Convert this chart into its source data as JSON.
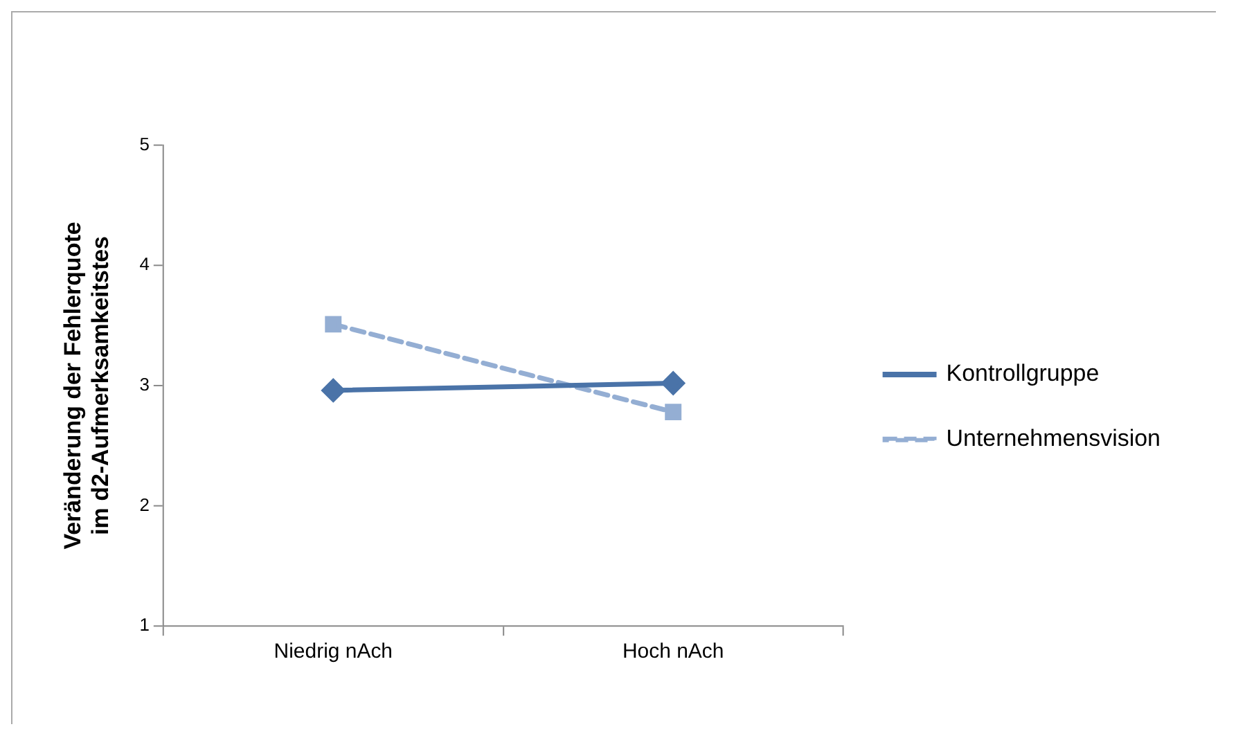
{
  "chart_data": {
    "type": "line",
    "ylabel": "Veränderung der Fehlerquote\nim d2-Aufmerksamkeitstes",
    "categories": [
      "Niedrig nAch",
      "Hoch nAch"
    ],
    "series": [
      {
        "name": "Kontrollgruppe",
        "color": "#4a73a8",
        "values": [
          2.96,
          3.02
        ],
        "marker": "diamond",
        "line_style": "solid"
      },
      {
        "name": "Unternehmensvision",
        "color": "#94aed3",
        "values": [
          3.51,
          2.78
        ],
        "marker": "square",
        "line_style": "dashed"
      }
    ],
    "ylim": [
      1,
      5
    ],
    "yticks": [
      1,
      2,
      3,
      4,
      5
    ],
    "grid": false,
    "legend": "right"
  }
}
